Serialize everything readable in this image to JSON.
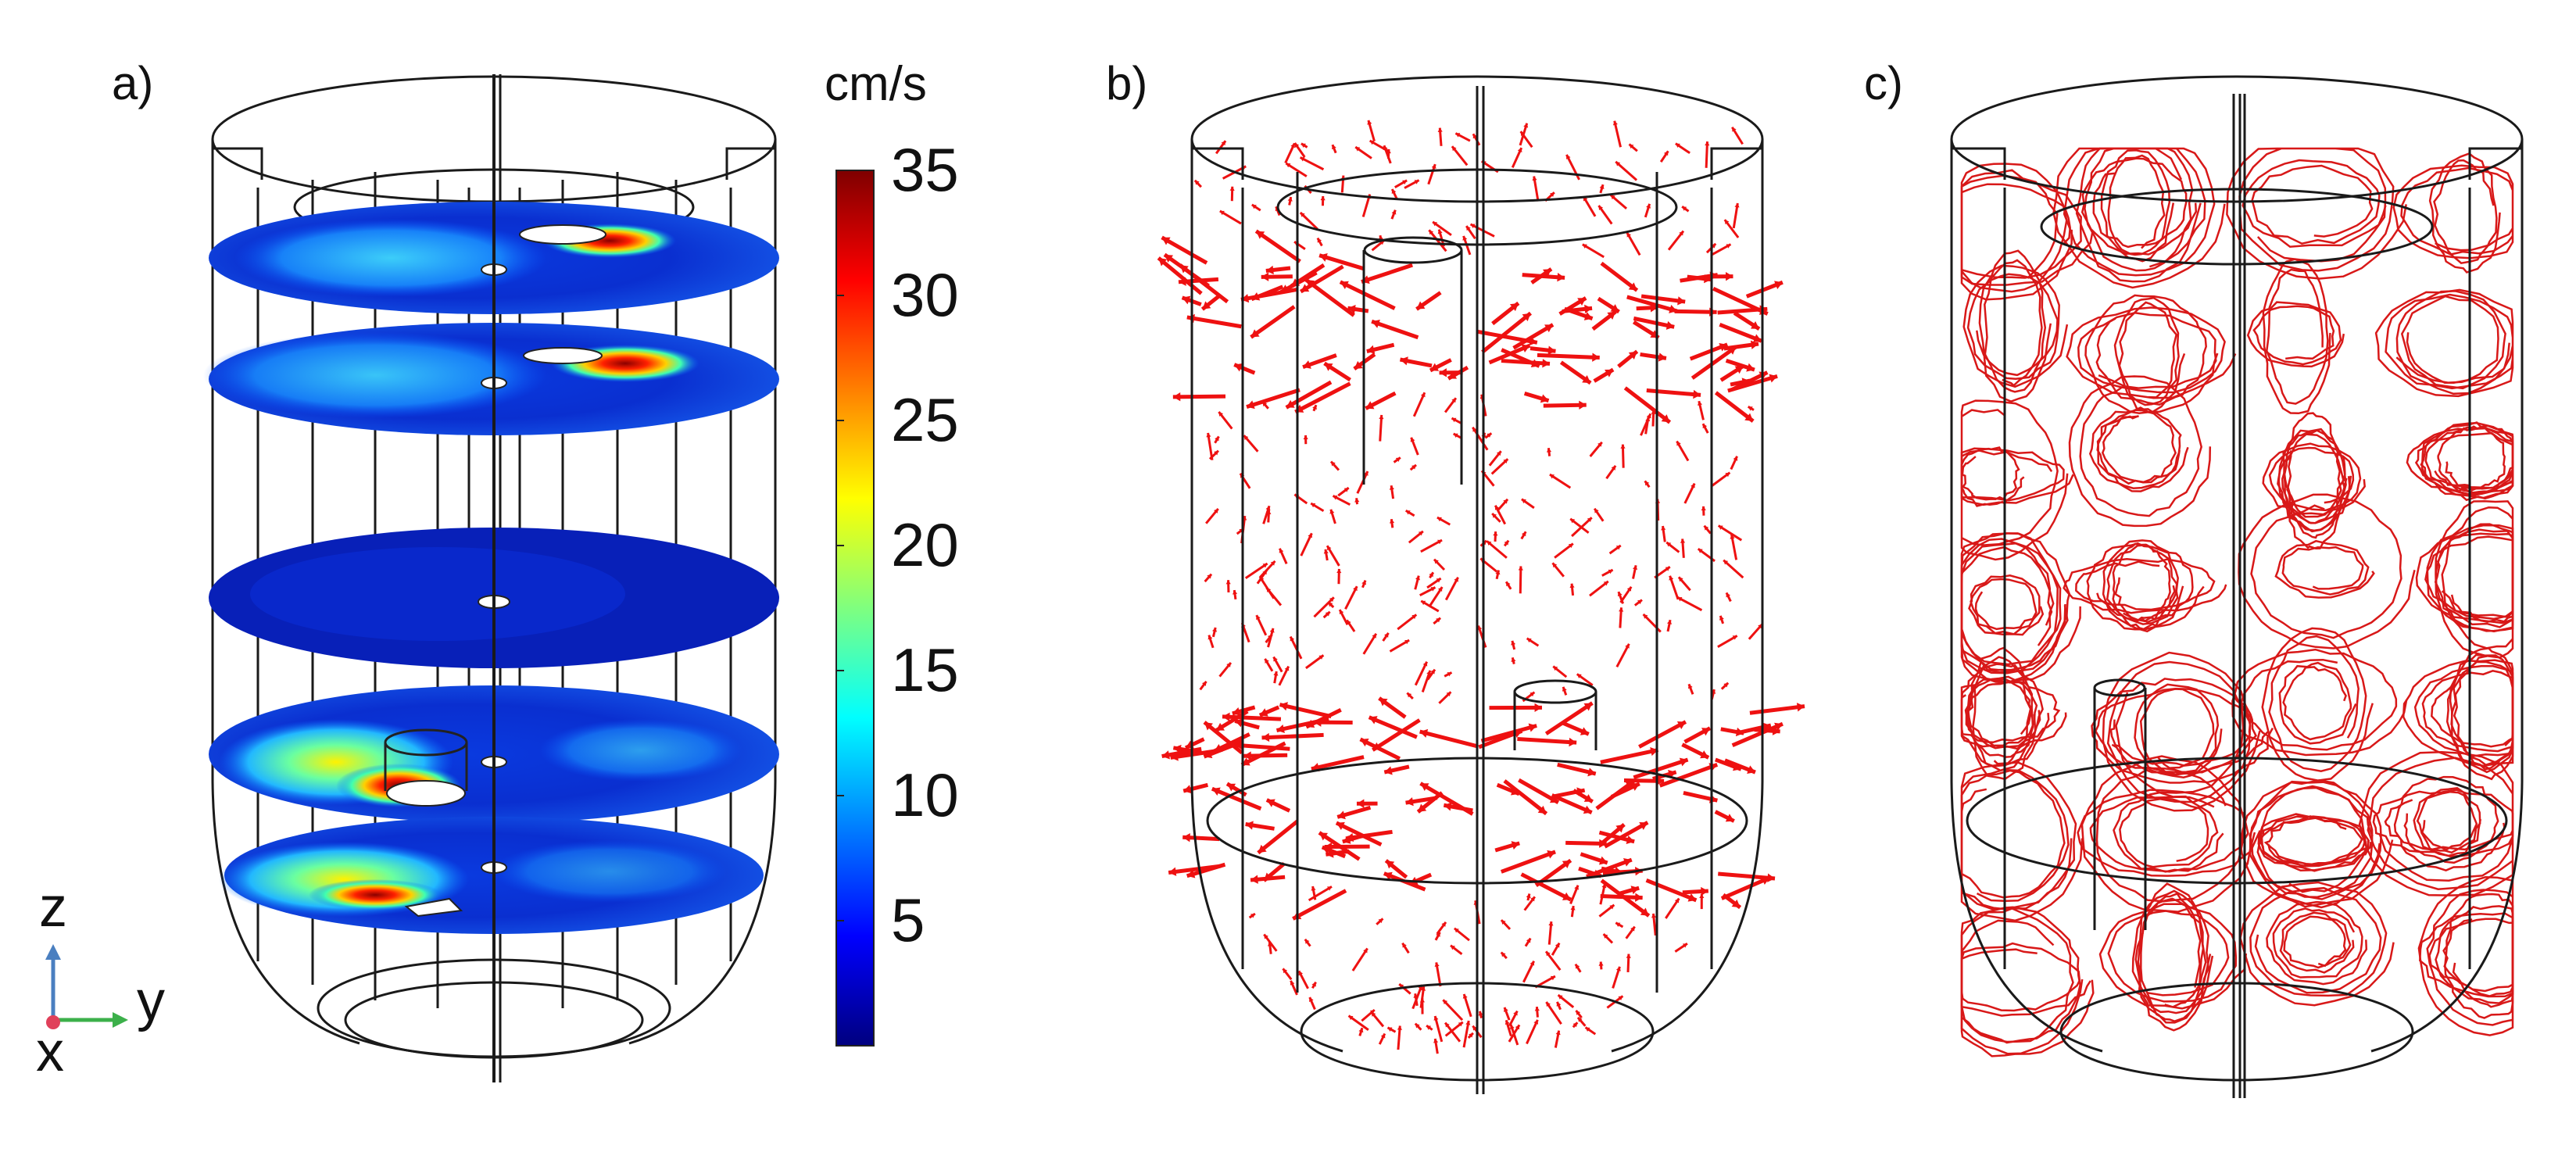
{
  "panels": [
    {
      "label": "a)"
    },
    {
      "label": "b)"
    },
    {
      "label": "c)"
    }
  ],
  "colorbar": {
    "unit": "cm/s",
    "ticks": [
      "35",
      "30",
      "25",
      "20",
      "15",
      "10",
      "5"
    ],
    "min": 0,
    "max": 35,
    "colormap": [
      "#00007f",
      "#0000ff",
      "#007fff",
      "#00ffff",
      "#7fff7f",
      "#ffff00",
      "#ff7f00",
      "#ff0000",
      "#7f0000"
    ]
  },
  "triad": {
    "z": "z",
    "y": "y",
    "x": "x"
  },
  "colors": {
    "wireframe": "#1a1a1a",
    "vector": "#ee1111",
    "streamline": "#d81818",
    "triad_z": "#4a7fc0",
    "triad_y": "#3cb04a",
    "triad_x": "#e0405a"
  }
}
